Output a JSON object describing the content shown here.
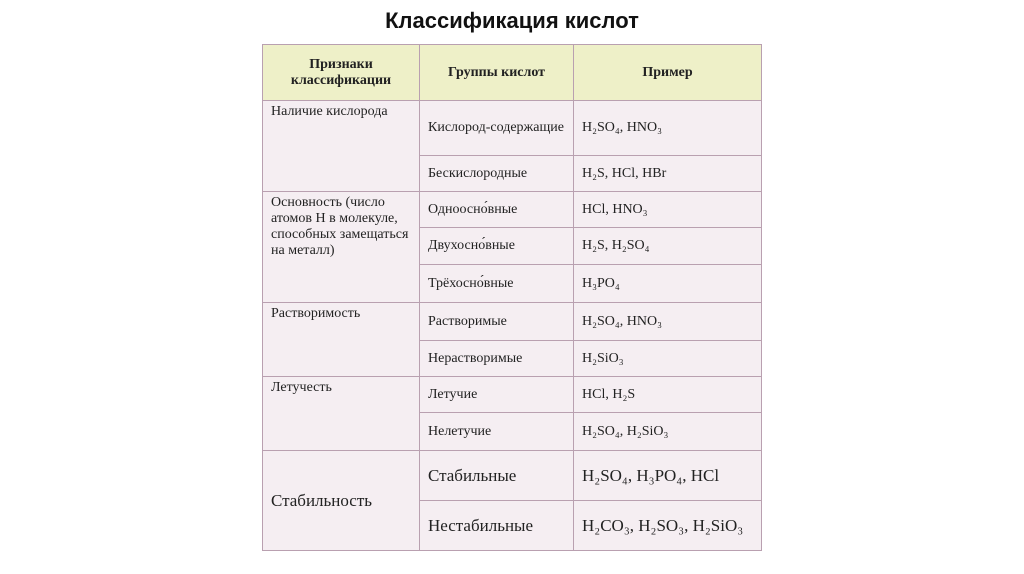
{
  "title": "Классификация кислот",
  "table": {
    "header": [
      "Признаки классификации",
      "Группы кислот",
      "Пример"
    ],
    "groups": [
      {
        "feature": "Наличие кислорода",
        "rows": [
          [
            "Кислород-содержащие",
            "H₂SO₄, HNO₃"
          ],
          [
            "Бескислородные",
            "H₂S, HCl, HBr"
          ]
        ]
      },
      {
        "feature": "Основность (число атомов Н в молекуле, способных замещаться на металл)",
        "rows": [
          [
            "Одноосно́вные",
            "HCl, HNO₃"
          ],
          [
            "Двухосно́вные",
            "H₂S, H₂SO₄"
          ],
          [
            "Трёхосно́вные",
            "H₃PO₄"
          ]
        ]
      },
      {
        "feature": "Растворимость",
        "rows": [
          [
            "Растворимые",
            "H₂SO₄, HNO₃"
          ],
          [
            "Нерастворимые",
            "H₂SiO₃"
          ]
        ]
      },
      {
        "feature": "Летучесть",
        "rows": [
          [
            "Летучие",
            "HCl, H₂S"
          ],
          [
            "Нелетучие",
            "H₂SO₄, H₂SiO₃"
          ]
        ]
      },
      {
        "feature": "Стабильность",
        "rows": [
          [
            "Стабильные",
            "H₂SO₄, H₃PO₄, HCl"
          ],
          [
            "Нестабильные",
            "H₂CO₃, H₂SO₃, H₂SiO₃"
          ]
        ]
      }
    ]
  }
}
